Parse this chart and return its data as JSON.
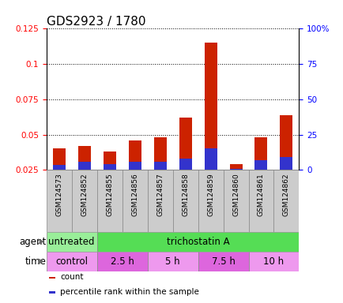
{
  "title": "GDS2923 / 1780",
  "samples": [
    "GSM124573",
    "GSM124852",
    "GSM124855",
    "GSM124856",
    "GSM124857",
    "GSM124858",
    "GSM124859",
    "GSM124860",
    "GSM124861",
    "GSM124862"
  ],
  "count_values": [
    0.04,
    0.042,
    0.038,
    0.046,
    0.048,
    0.062,
    0.115,
    0.029,
    0.048,
    0.064
  ],
  "percentile_values": [
    0.0285,
    0.0305,
    0.029,
    0.031,
    0.031,
    0.033,
    0.04,
    0.026,
    0.032,
    0.034
  ],
  "left_ylim": [
    0.025,
    0.125
  ],
  "left_yticks": [
    0.025,
    0.05,
    0.075,
    0.1,
    0.125
  ],
  "left_yticklabels": [
    "0.025",
    "0.05",
    "0.075",
    "0.1",
    "0.125"
  ],
  "right_ylim": [
    0,
    100
  ],
  "right_yticks": [
    0,
    25,
    50,
    75,
    100
  ],
  "right_yticklabels": [
    "0",
    "25",
    "50",
    "75",
    "100%"
  ],
  "bar_color_red": "#cc2200",
  "bar_color_blue": "#3333cc",
  "agent_untreated_color": "#99ee99",
  "agent_trichostatin_color": "#55dd55",
  "time_colors": [
    "#ee99ee",
    "#dd66dd",
    "#ee99ee",
    "#dd66dd",
    "#ee99ee"
  ],
  "agent_labels": [
    {
      "text": "untreated",
      "start": 0,
      "end": 2
    },
    {
      "text": "trichostatin A",
      "start": 2,
      "end": 10
    }
  ],
  "time_labels": [
    {
      "text": "control",
      "start": 0,
      "end": 2
    },
    {
      "text": "2.5 h",
      "start": 2,
      "end": 4
    },
    {
      "text": "5 h",
      "start": 4,
      "end": 6
    },
    {
      "text": "7.5 h",
      "start": 6,
      "end": 8
    },
    {
      "text": "10 h",
      "start": 8,
      "end": 10
    }
  ],
  "legend_items": [
    {
      "label": "count",
      "color": "#cc2200"
    },
    {
      "label": "percentile rank within the sample",
      "color": "#3333cc"
    }
  ],
  "bar_width": 0.5,
  "tick_fontsize": 7.5,
  "sample_fontsize": 6.5,
  "label_fontsize": 8.5,
  "title_fontsize": 11,
  "grid_color": "black",
  "grid_linestyle": ":",
  "grid_linewidth": 0.7
}
